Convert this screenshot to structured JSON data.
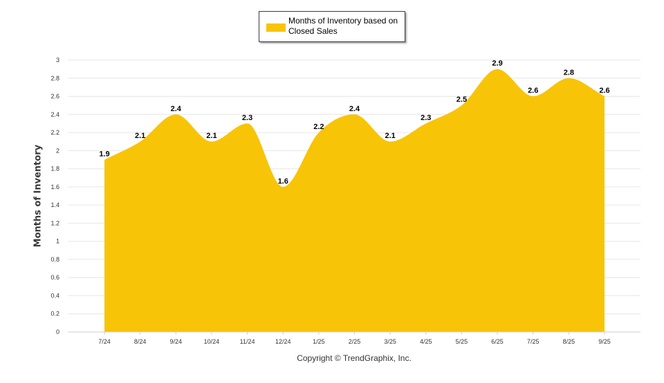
{
  "legend": {
    "label": "Months of Inventory based on Closed Sales"
  },
  "footer": {
    "copyright": "Copyright © TrendGraphix, Inc."
  },
  "colors": {
    "area_fill": "#F7C407",
    "grid": "#e6e6e6",
    "axis_text": "#333333",
    "data_label": "#000000"
  },
  "chart_data": {
    "type": "area",
    "title": "",
    "xlabel": "",
    "ylabel": "Months of Inventory",
    "categories": [
      "7/24",
      "8/24",
      "9/24",
      "10/24",
      "11/24",
      "12/24",
      "1/25",
      "2/25",
      "3/25",
      "4/25",
      "5/25",
      "6/25",
      "7/25",
      "8/25",
      "9/25"
    ],
    "series": [
      {
        "name": "Months of Inventory based on Closed Sales",
        "values": [
          1.9,
          2.1,
          2.4,
          2.1,
          2.3,
          1.6,
          2.2,
          2.4,
          2.1,
          2.3,
          2.5,
          2.9,
          2.6,
          2.8,
          2.6
        ],
        "color": "#F7C407"
      }
    ],
    "data_labels": [
      "1.9",
      "2.1",
      "2.4",
      "2.1",
      "2.3",
      "1.6",
      "2.2",
      "2.4",
      "2.1",
      "2.3",
      "2.5",
      "2.9",
      "2.6",
      "2.8",
      "2.6"
    ],
    "yticks": [
      "0",
      "0.2",
      "0.4",
      "0.6",
      "0.8",
      "1",
      "1.2",
      "1.4",
      "1.6",
      "1.8",
      "2",
      "2.2",
      "2.4",
      "2.6",
      "2.8",
      "3"
    ],
    "ylim": [
      0,
      3
    ],
    "grid": true,
    "smooth": true,
    "legend_position": "top-center"
  }
}
